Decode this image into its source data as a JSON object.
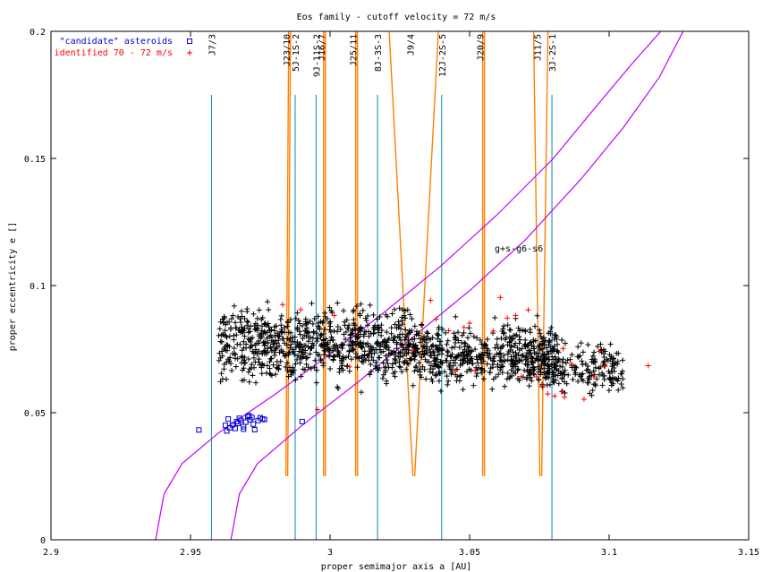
{
  "chart_data": {
    "type": "scatter",
    "title": "Eos family - cutoff velocity = 72 m/s",
    "xlabel": "proper semimajor axis a [AU]",
    "ylabel": "proper eccentricity e []",
    "xlim": [
      2.9,
      3.15
    ],
    "ylim": [
      0,
      0.2
    ],
    "xticks": [
      "2.9",
      "2.95",
      "3",
      "3.05",
      "3.1",
      "3.15"
    ],
    "yticks": [
      "0",
      "0.05",
      "0.1",
      "0.15",
      "0.2"
    ],
    "grid": false,
    "legend_position": "top-left",
    "colors": {
      "candidates": "#0000cc",
      "identified": "#ff0000",
      "family": "#000000",
      "mmr_three_body": "#008bb0",
      "mmr_two_body": "#ff7f00",
      "secular": "#c000ff"
    },
    "series": [
      {
        "name": "\"candidate\" asteroids",
        "marker": "square",
        "color": "#0000cc",
        "points": [
          [
            2.953,
            0.0432
          ],
          [
            2.9625,
            0.045
          ],
          [
            2.9635,
            0.0475
          ],
          [
            2.964,
            0.044
          ],
          [
            2.965,
            0.0452
          ],
          [
            2.966,
            0.0438
          ],
          [
            2.9665,
            0.0465
          ],
          [
            2.9675,
            0.0478
          ],
          [
            2.968,
            0.047
          ],
          [
            2.969,
            0.0445
          ],
          [
            2.9698,
            0.0463
          ],
          [
            2.9705,
            0.0485
          ],
          [
            2.971,
            0.0488
          ],
          [
            2.9713,
            0.0472
          ],
          [
            2.972,
            0.0481
          ],
          [
            2.9725,
            0.0455
          ],
          [
            2.973,
            0.0433
          ],
          [
            2.9742,
            0.0469
          ],
          [
            2.975,
            0.048
          ],
          [
            2.9758,
            0.0475
          ],
          [
            2.9765,
            0.0473
          ],
          [
            2.969,
            0.0435
          ],
          [
            2.963,
            0.0428
          ],
          [
            2.967,
            0.0458
          ],
          [
            2.99,
            0.0465
          ]
        ]
      },
      {
        "name": "identified 70 - 72 m/s",
        "marker": "plus",
        "color": "#ff0000",
        "points": [
          [
            2.983,
            0.0925
          ],
          [
            2.9895,
            0.0905
          ],
          [
            2.9955,
            0.0512
          ],
          [
            3.0015,
            0.0882
          ],
          [
            3.007,
            0.068
          ],
          [
            3.036,
            0.0942
          ],
          [
            3.038,
            0.0868
          ],
          [
            3.0295,
            0.0744
          ],
          [
            3.048,
            0.0835
          ],
          [
            3.05,
            0.0852
          ],
          [
            3.052,
            0.0664
          ],
          [
            3.061,
            0.0953
          ],
          [
            3.0635,
            0.0872
          ],
          [
            3.0665,
            0.0882
          ],
          [
            3.0685,
            0.0642
          ],
          [
            3.074,
            0.0641
          ],
          [
            3.076,
            0.0606
          ],
          [
            3.078,
            0.0574
          ],
          [
            3.0805,
            0.0565
          ],
          [
            3.083,
            0.0582
          ],
          [
            3.084,
            0.0561
          ],
          [
            3.0835,
            0.0752
          ],
          [
            3.0865,
            0.0692
          ],
          [
            3.091,
            0.0553
          ],
          [
            3.0945,
            0.0641
          ],
          [
            3.0965,
            0.0741
          ],
          [
            3.0985,
            0.0682
          ],
          [
            3.114,
            0.0685
          ],
          [
            3.0425,
            0.0822
          ],
          [
            3.045,
            0.0665
          ],
          [
            3.0585,
            0.0821
          ],
          [
            3.071,
            0.0904
          ]
        ]
      },
      {
        "name": "Eos family",
        "marker": "plus",
        "color": "#000000",
        "count": 1500
      }
    ],
    "resonances_three_body": [
      {
        "label": "J7/3",
        "a": 2.9575
      },
      {
        "label": "5J-1S-2",
        "a": 2.9875
      },
      {
        "label": "9J-11S-2",
        "a": 2.995
      },
      {
        "label": "8J-3S-3",
        "a": 3.017
      },
      {
        "label": "12J-2S-5",
        "a": 3.04
      },
      {
        "label": "3J-2S-1",
        "a": 3.0795
      }
    ],
    "resonances_two_body": [
      {
        "label": "J23/10",
        "a_top": 2.9855,
        "a_bottom": 2.9845,
        "e_low": 0.025
      },
      {
        "label": "J16/7",
        "a_top": 2.998,
        "a_bottom": 2.998,
        "e_low": 0.025
      },
      {
        "label": "J25/11",
        "a_top": 3.0095,
        "a_bottom": 3.0095,
        "e_low": 0.025
      },
      {
        "label": "J9/4",
        "a_top": 3.03,
        "a_bottom": 3.03,
        "e_low": 0.025
      },
      {
        "label": "J20/9",
        "a_top": 3.055,
        "a_bottom": 3.055,
        "e_low": 0.025
      },
      {
        "label": "J11/5",
        "a_top": 3.0755,
        "a_bottom": 3.0755,
        "e_low": 0.025
      }
    ],
    "secular_label": "g+s-g6-s6",
    "secular_curves": [
      [
        [
          2.9375,
          0
        ],
        [
          2.9405,
          0.018
        ],
        [
          2.947,
          0.03
        ],
        [
          2.96,
          0.042
        ],
        [
          2.98,
          0.057
        ],
        [
          3.0,
          0.073
        ],
        [
          3.02,
          0.09
        ],
        [
          3.04,
          0.108
        ],
        [
          3.06,
          0.128
        ],
        [
          3.08,
          0.15
        ],
        [
          3.095,
          0.17
        ],
        [
          3.108,
          0.187
        ],
        [
          3.1185,
          0.2
        ]
      ],
      [
        [
          2.9645,
          0
        ],
        [
          2.9675,
          0.018
        ],
        [
          2.974,
          0.03
        ],
        [
          2.99,
          0.045
        ],
        [
          3.01,
          0.062
        ],
        [
          3.03,
          0.08
        ],
        [
          3.05,
          0.098
        ],
        [
          3.07,
          0.118
        ],
        [
          3.09,
          0.142
        ],
        [
          3.105,
          0.162
        ],
        [
          3.118,
          0.182
        ],
        [
          3.1265,
          0.2
        ]
      ]
    ]
  }
}
